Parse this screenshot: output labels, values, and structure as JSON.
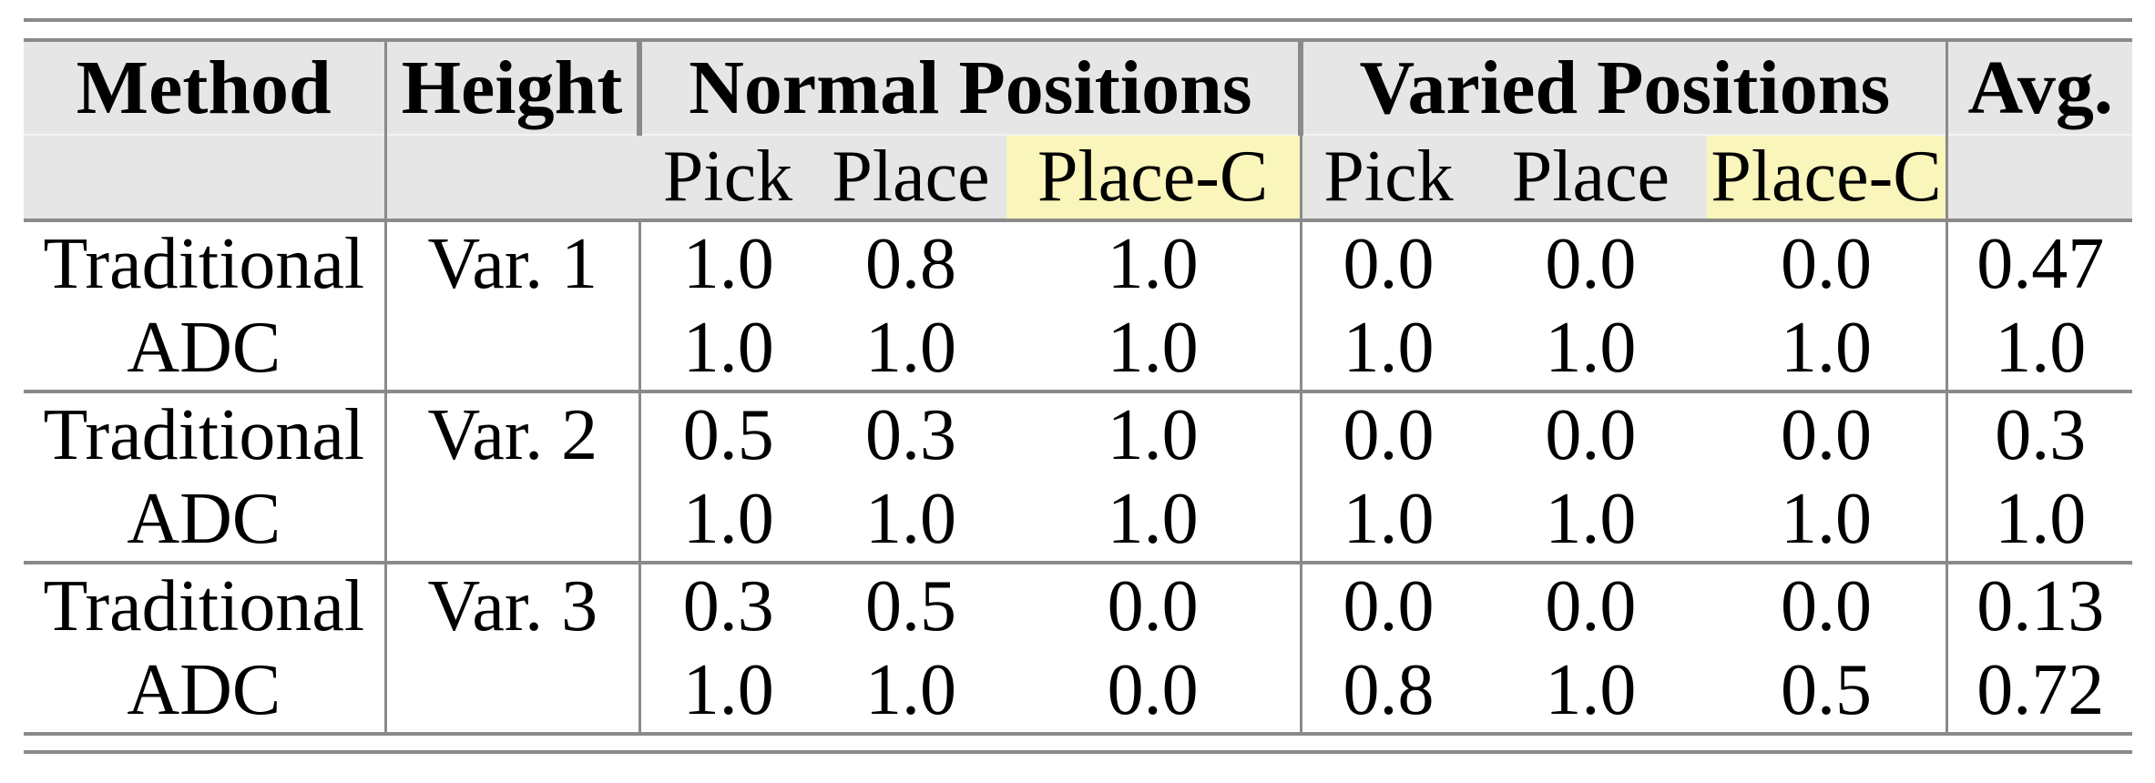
{
  "page": {
    "background": "#ffffff"
  },
  "table": {
    "header": {
      "method": "Method",
      "height": "Height",
      "normal_group": "Normal Positions",
      "varied_group": "Varied Positions",
      "avg": "Avg.",
      "subcols": [
        "Pick",
        "Place",
        "Place-C"
      ]
    },
    "rows": [
      {
        "method": "Traditional",
        "height": "Var. 1",
        "normal": [
          "1.0",
          "0.8",
          "1.0"
        ],
        "varied": [
          "0.0",
          "0.0",
          "0.0"
        ],
        "avg": "0.47"
      },
      {
        "method": "ADC",
        "height": "",
        "normal": [
          "1.0",
          "1.0",
          "1.0"
        ],
        "varied": [
          "1.0",
          "1.0",
          "1.0"
        ],
        "avg": "1.0"
      },
      {
        "method": "Traditional",
        "height": "Var. 2",
        "normal": [
          "0.5",
          "0.3",
          "1.0"
        ],
        "varied": [
          "0.0",
          "0.0",
          "0.0"
        ],
        "avg": "0.3"
      },
      {
        "method": "ADC",
        "height": "",
        "normal": [
          "1.0",
          "1.0",
          "1.0"
        ],
        "varied": [
          "1.0",
          "1.0",
          "1.0"
        ],
        "avg": "1.0"
      },
      {
        "method": "Traditional",
        "height": "Var. 3",
        "normal": [
          "0.3",
          "0.5",
          "0.0"
        ],
        "varied": [
          "0.0",
          "0.0",
          "0.0"
        ],
        "avg": "0.13"
      },
      {
        "method": "ADC",
        "height": "",
        "normal": [
          "1.0",
          "1.0",
          "0.0"
        ],
        "varied": [
          "0.8",
          "1.0",
          "0.5"
        ],
        "avg": "0.72"
      }
    ],
    "colors": {
      "header_bg": "#e6e6e6",
      "highlight_bg": "#faf5bb",
      "rule": "#8a8a8a",
      "text": "#000000"
    }
  }
}
